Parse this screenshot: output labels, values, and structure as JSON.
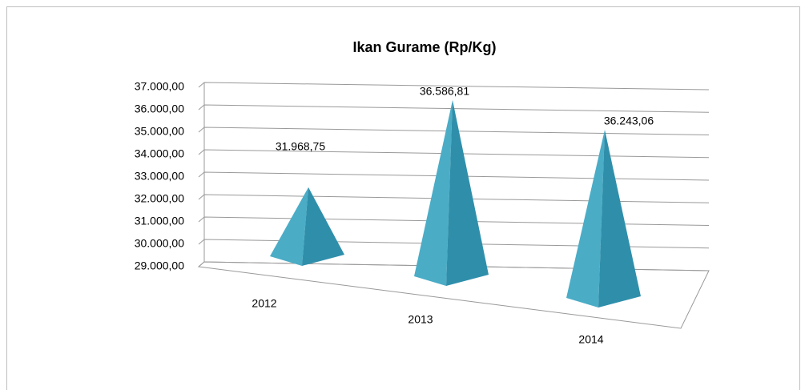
{
  "chart_data": {
    "type": "pyramid3d",
    "title": "Ikan Gurame (Rp/Kg)",
    "categories": [
      "2012",
      "2013",
      "2014"
    ],
    "values": [
      31968.75,
      36586.81,
      36243.06
    ],
    "value_labels": [
      "31.968,75",
      "36.586,81",
      "36.243,06"
    ],
    "color": "#4bacc6",
    "ylim": [
      29000,
      37000
    ],
    "yticks": [
      {
        "value": 29000,
        "label": "29.000,00"
      },
      {
        "value": 30000,
        "label": "30.000,00"
      },
      {
        "value": 31000,
        "label": "31.000,00"
      },
      {
        "value": 32000,
        "label": "32.000,00"
      },
      {
        "value": 33000,
        "label": "33.000,00"
      },
      {
        "value": 34000,
        "label": "34.000,00"
      },
      {
        "value": 35000,
        "label": "35.000,00"
      },
      {
        "value": 36000,
        "label": "36.000,00"
      },
      {
        "value": 37000,
        "label": "37.000,00"
      }
    ],
    "grid": true
  }
}
